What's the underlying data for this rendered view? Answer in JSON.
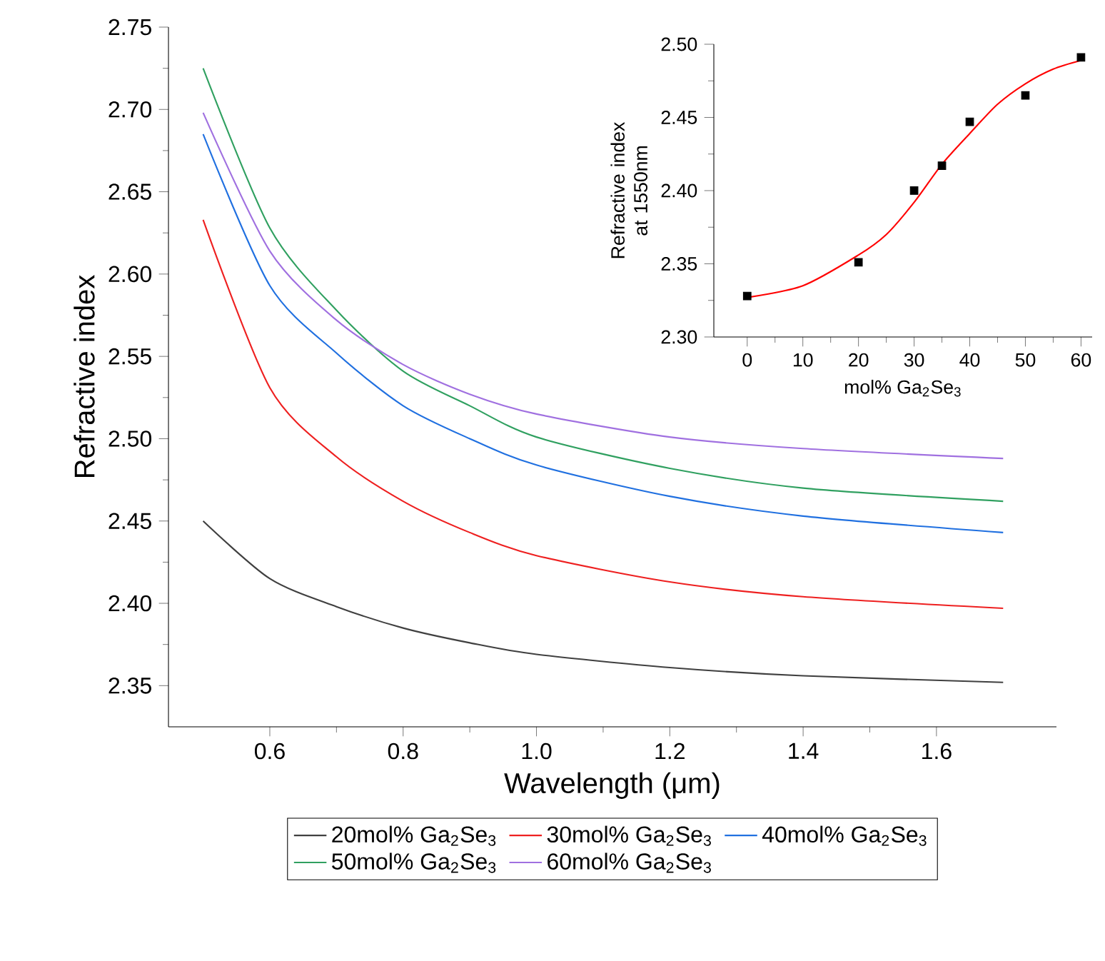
{
  "chart_data": [
    {
      "type": "line",
      "xlabel": "Wavelength (μm)",
      "ylabel": "Refractive index",
      "legend": "bottom",
      "xlim": [
        0.448,
        1.78
      ],
      "ylim": [
        2.325,
        2.75
      ],
      "xticks": [
        {
          "value": 0.6,
          "label": "0.6"
        },
        {
          "value": 0.8,
          "label": "0.8"
        },
        {
          "value": 1,
          "label": "1.0"
        },
        {
          "value": 1.2,
          "label": "1.2"
        },
        {
          "value": 1.4,
          "label": "1.4"
        },
        {
          "value": 1.6,
          "label": "1.6"
        }
      ],
      "yticks": [
        {
          "value": 2.35,
          "label": "2.35"
        },
        {
          "value": 2.4,
          "label": "2.40"
        },
        {
          "value": 2.45,
          "label": "2.45"
        },
        {
          "value": 2.5,
          "label": "2.50"
        },
        {
          "value": 2.55,
          "label": "2.55"
        },
        {
          "value": 2.6,
          "label": "2.60"
        },
        {
          "value": 2.65,
          "label": "2.65"
        },
        {
          "value": 2.7,
          "label": "2.70"
        },
        {
          "value": 2.75,
          "label": "2.75"
        }
      ],
      "x": [
        0.5,
        0.6,
        0.7,
        0.8,
        0.9,
        1.0,
        1.2,
        1.4,
        1.7
      ],
      "series": [
        {
          "name": "20mol% Ga$_{2}$Se$_{3}$",
          "color": "#404040",
          "values": [
            2.45,
            2.415,
            2.398,
            2.385,
            2.376,
            2.369,
            2.361,
            2.356,
            2.352
          ]
        },
        {
          "name": "30mol% Ga$_{2}$Se$_{3}$",
          "color": "#ee2020",
          "values": [
            2.633,
            2.531,
            2.489,
            2.462,
            2.443,
            2.429,
            2.413,
            2.404,
            2.397
          ]
        },
        {
          "name": "40mol% Ga$_{2}$Se$_{3}$",
          "color": "#2070e0",
          "values": [
            2.685,
            2.593,
            2.552,
            2.52,
            2.5,
            2.484,
            2.465,
            2.453,
            2.443
          ]
        },
        {
          "name": "50mol% Ga$_{2}$Se$_{3}$",
          "color": "#30a060",
          "values": [
            2.725,
            2.628,
            2.578,
            2.541,
            2.52,
            2.501,
            2.482,
            2.47,
            2.462
          ]
        },
        {
          "name": "60mol% Ga$_{2}$Se$_{3}$",
          "color": "#a070e0",
          "values": [
            2.698,
            2.614,
            2.572,
            2.545,
            2.527,
            2.515,
            2.501,
            2.494,
            2.488
          ]
        }
      ]
    },
    {
      "type": "scatter",
      "xlabel": "mol% Ga$_{2}$Se$_{3}$",
      "ylabel": "Refractive index at 1550nm",
      "xlim": [
        -6,
        62
      ],
      "ylim": [
        2.3,
        2.5
      ],
      "xticks": [
        0,
        10,
        20,
        30,
        40,
        50,
        60
      ],
      "yticks": [
        {
          "value": 2.3,
          "label": "2.30"
        },
        {
          "value": 2.35,
          "label": "2.35"
        },
        {
          "value": 2.4,
          "label": "2.40"
        },
        {
          "value": 2.45,
          "label": "2.45"
        },
        {
          "value": 2.5,
          "label": "2.50"
        }
      ],
      "series": [
        {
          "type": "scatter",
          "color": "#000000",
          "marker": "square",
          "x": [
            0,
            20,
            30,
            35,
            40,
            50,
            60
          ],
          "values": [
            2.328,
            2.351,
            2.4,
            2.417,
            2.447,
            2.465,
            2.491
          ]
        },
        {
          "type": "line",
          "color": "#ff0000",
          "x": [
            0,
            10,
            20,
            25,
            30,
            35,
            40,
            45,
            50,
            55,
            60
          ],
          "values": [
            2.327,
            2.335,
            2.356,
            2.37,
            2.392,
            2.418,
            2.439,
            2.459,
            2.473,
            2.483,
            2.489
          ]
        }
      ]
    }
  ]
}
